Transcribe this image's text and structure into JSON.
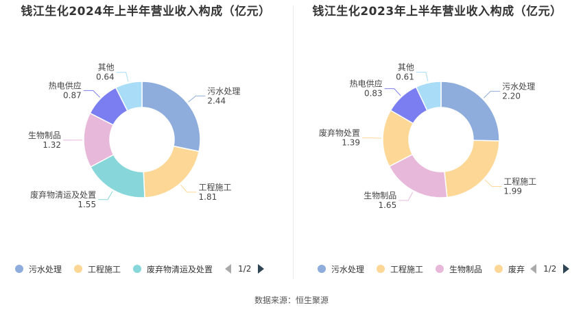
{
  "source": "数据来源：恒生聚源",
  "chart_data": [
    {
      "type": "pie",
      "title": "钱江生化2024年上半年营业收入构成（亿元）",
      "categories": [
        "污水处理",
        "工程施工",
        "废弃物清运及处置",
        "生物制品",
        "热电供应",
        "其他"
      ],
      "values": [
        2.44,
        1.81,
        1.55,
        1.32,
        0.87,
        0.64
      ],
      "value_labels": [
        "2.44",
        "1.81",
        "1.55",
        "1.32",
        "0.87",
        "0.64"
      ],
      "colors": [
        "#8eacdc",
        "#fdd796",
        "#87d7da",
        "#e8b8da",
        "#7a7ef0",
        "#a8dcf7"
      ],
      "legend": {
        "position": "bottom",
        "items": [
          {
            "label": "污水处理",
            "color": "#8eacdc"
          },
          {
            "label": "工程施工",
            "color": "#fdd796"
          },
          {
            "label": "废弃物清运及处置",
            "color": "#87d7da"
          }
        ],
        "page": "1/2"
      }
    },
    {
      "type": "pie",
      "title": "钱江生化2023年上半年营业收入构成（亿元）",
      "categories": [
        "污水处理",
        "工程施工",
        "生物制品",
        "废弃物处置",
        "热电供应",
        "其他"
      ],
      "values": [
        2.2,
        1.99,
        1.65,
        1.39,
        0.83,
        0.61
      ],
      "value_labels": [
        "2.20",
        "1.99",
        "1.65",
        "1.39",
        "0.83",
        "0.61"
      ],
      "colors": [
        "#8eacdc",
        "#fdd796",
        "#e8b8da",
        "#fdd796",
        "#7a7ef0",
        "#a8dcf7"
      ],
      "label_names": [
        "污水处理",
        "工程施工",
        "生物制品",
        "废弃物处置",
        "热电供应",
        "其他"
      ],
      "legend": {
        "position": "bottom",
        "items": [
          {
            "label": "污水处理",
            "color": "#8eacdc"
          },
          {
            "label": "工程施工",
            "color": "#fdd796"
          },
          {
            "label": "生物制品",
            "color": "#e8b8da"
          },
          {
            "label": "废弃",
            "color": "#fdd796"
          }
        ],
        "page": "1/2"
      }
    }
  ]
}
